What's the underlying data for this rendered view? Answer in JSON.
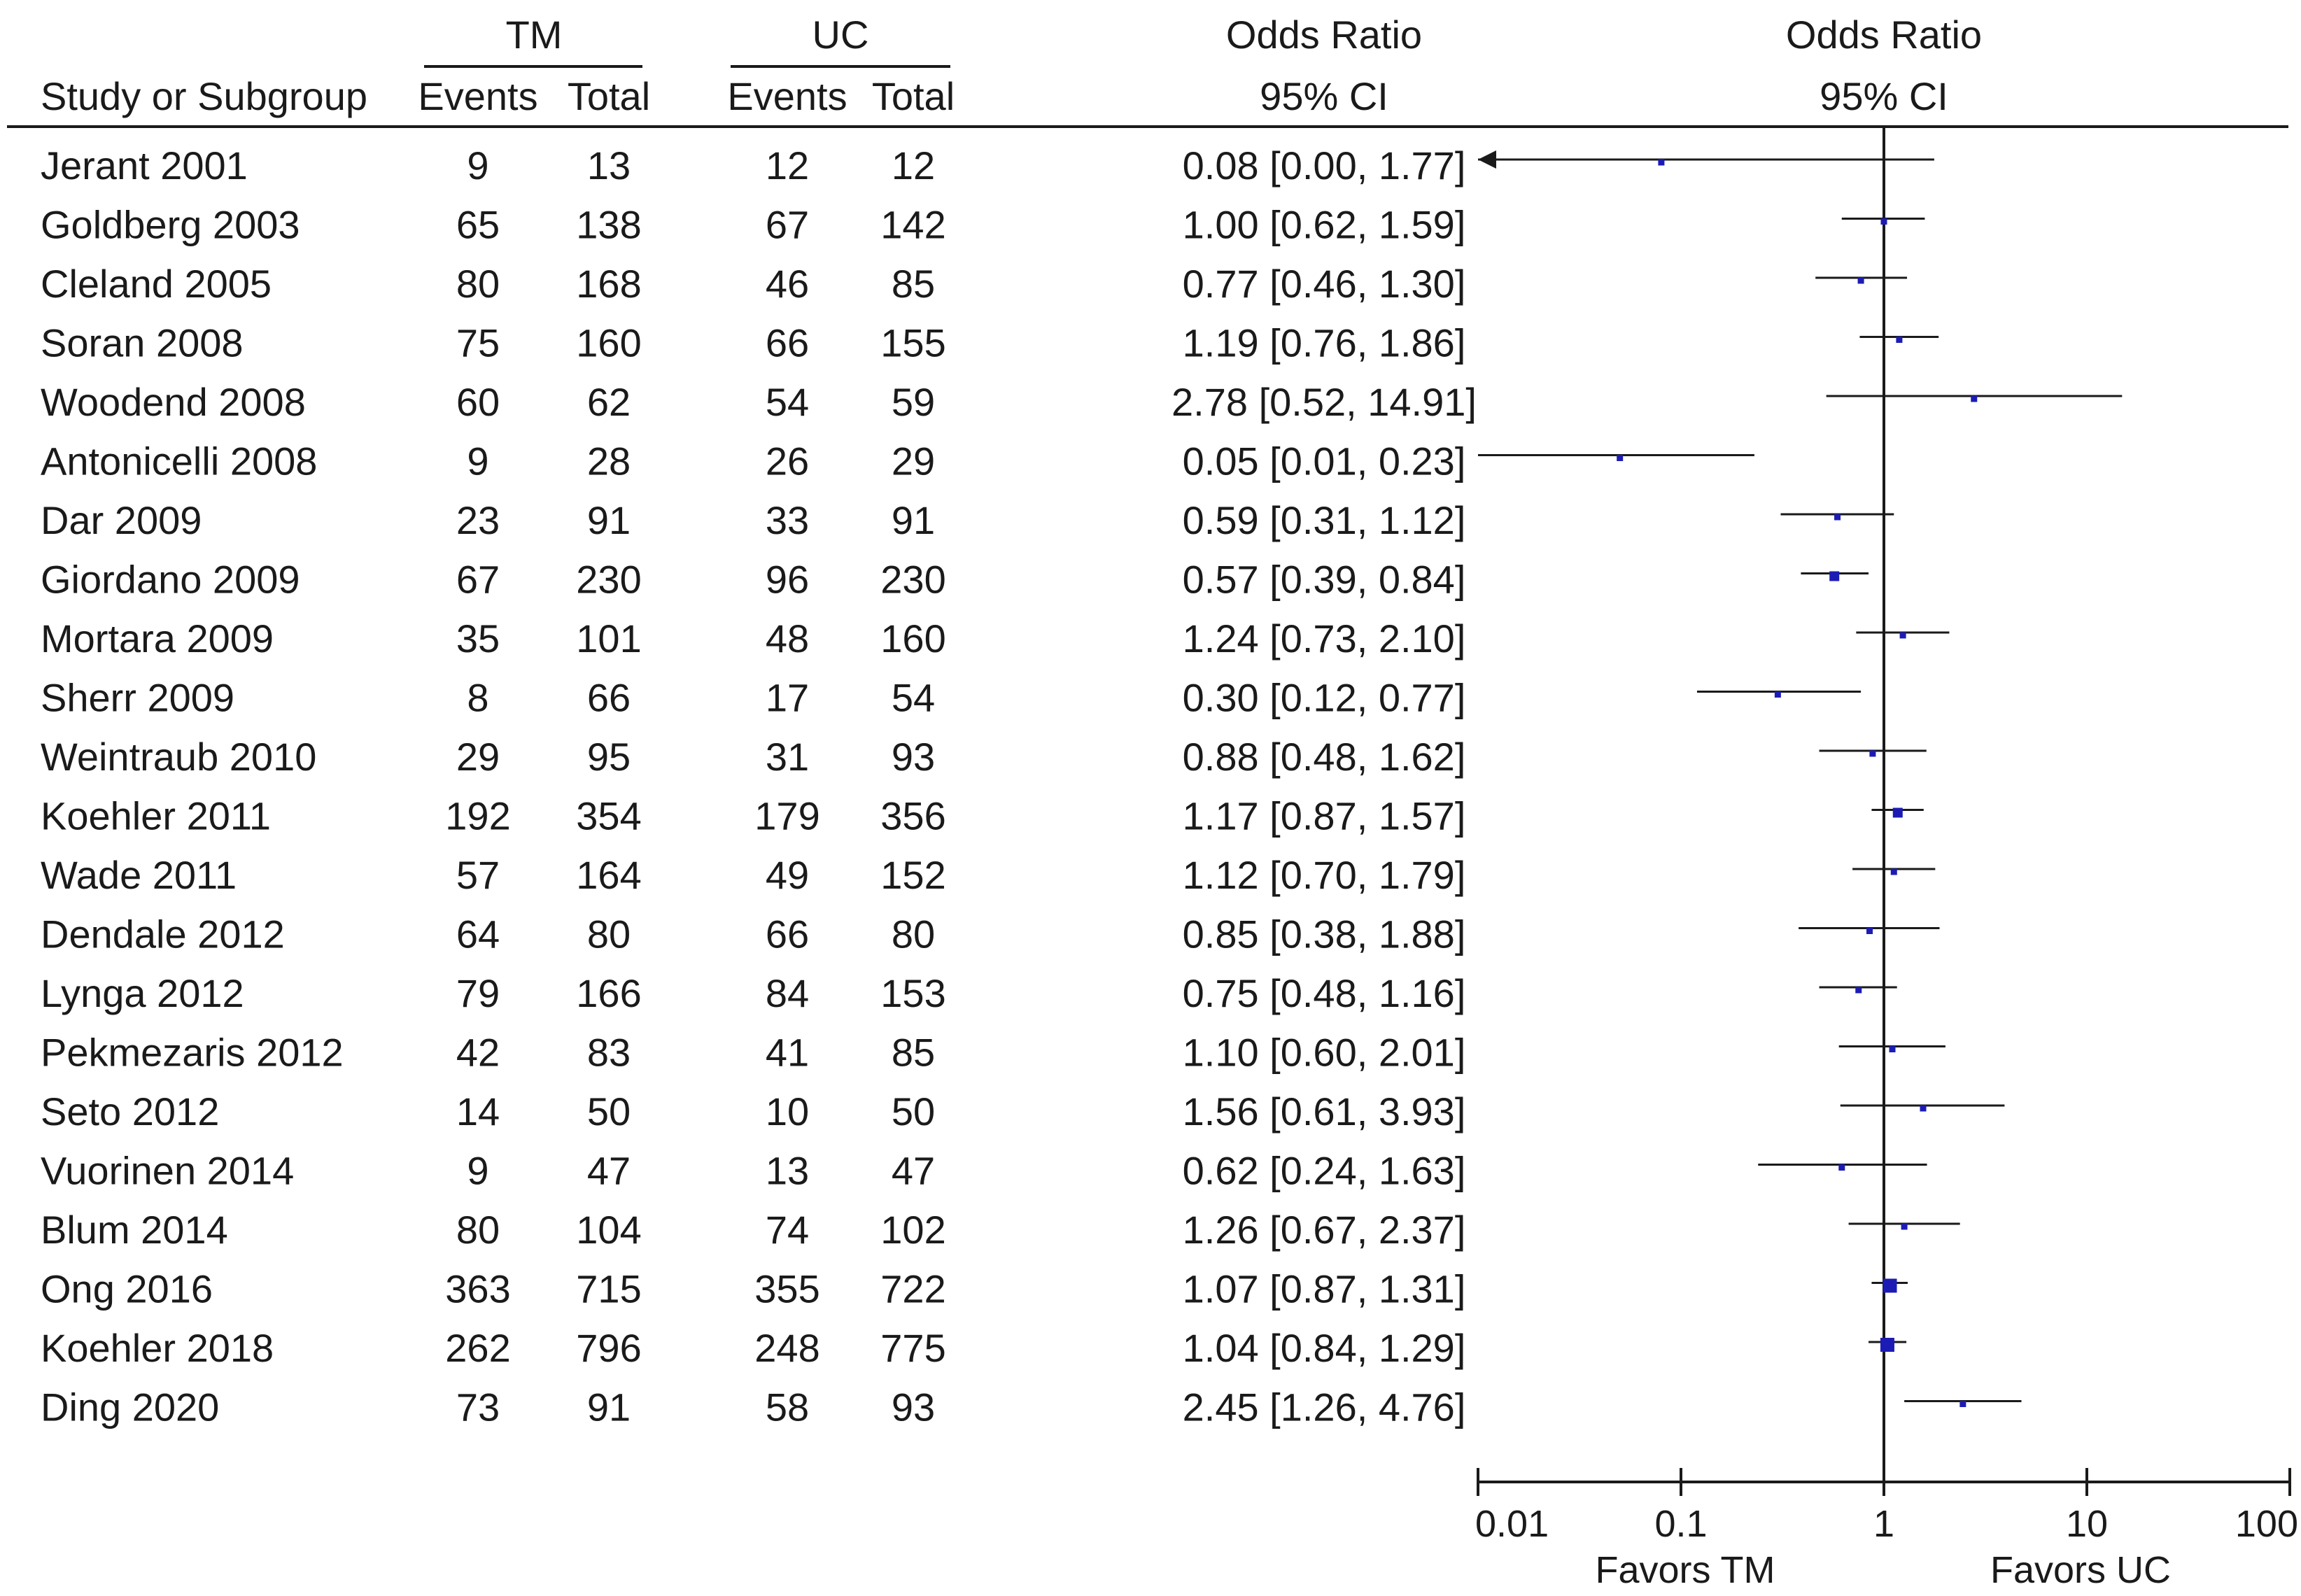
{
  "chart_data": {
    "type": "forest",
    "headers": {
      "study": "Study or Subgroup",
      "group1": "TM",
      "group2": "UC",
      "events": "Events",
      "total": "Total",
      "or_col_line1": "Odds Ratio",
      "or_col_line2": "95% CI",
      "plot_line1": "Odds Ratio",
      "plot_line2": "95% CI"
    },
    "studies": [
      {
        "name": "Jerant 2001",
        "tm_events": 9,
        "tm_total": 13,
        "uc_events": 12,
        "uc_total": 12,
        "or": 0.08,
        "lower": 0.0,
        "upper": 1.77,
        "or_text": "0.08 [0.00, 1.77]",
        "weight_rank": 1
      },
      {
        "name": "Goldberg 2003",
        "tm_events": 65,
        "tm_total": 138,
        "uc_events": 67,
        "uc_total": 142,
        "or": 1.0,
        "lower": 0.62,
        "upper": 1.59,
        "or_text": "1.00 [0.62, 1.59]",
        "weight_rank": 1
      },
      {
        "name": "Cleland 2005",
        "tm_events": 80,
        "tm_total": 168,
        "uc_events": 46,
        "uc_total": 85,
        "or": 0.77,
        "lower": 0.46,
        "upper": 1.3,
        "or_text": "0.77 [0.46, 1.30]",
        "weight_rank": 1
      },
      {
        "name": "Soran 2008",
        "tm_events": 75,
        "tm_total": 160,
        "uc_events": 66,
        "uc_total": 155,
        "or": 1.19,
        "lower": 0.76,
        "upper": 1.86,
        "or_text": "1.19 [0.76, 1.86]",
        "weight_rank": 1
      },
      {
        "name": "Woodend 2008",
        "tm_events": 60,
        "tm_total": 62,
        "uc_events": 54,
        "uc_total": 59,
        "or": 2.78,
        "lower": 0.52,
        "upper": 14.91,
        "or_text": "2.78 [0.52, 14.91]",
        "weight_rank": 1
      },
      {
        "name": "Antonicelli 2008",
        "tm_events": 9,
        "tm_total": 28,
        "uc_events": 26,
        "uc_total": 29,
        "or": 0.05,
        "lower": 0.01,
        "upper": 0.23,
        "or_text": "0.05 [0.01, 0.23]",
        "weight_rank": 1
      },
      {
        "name": "Dar 2009",
        "tm_events": 23,
        "tm_total": 91,
        "uc_events": 33,
        "uc_total": 91,
        "or": 0.59,
        "lower": 0.31,
        "upper": 1.12,
        "or_text": "0.59 [0.31, 1.12]",
        "weight_rank": 1
      },
      {
        "name": "Giordano 2009",
        "tm_events": 67,
        "tm_total": 230,
        "uc_events": 96,
        "uc_total": 230,
        "or": 0.57,
        "lower": 0.39,
        "upper": 0.84,
        "or_text": "0.57 [0.39, 0.84]",
        "weight_rank": 2
      },
      {
        "name": "Mortara 2009",
        "tm_events": 35,
        "tm_total": 101,
        "uc_events": 48,
        "uc_total": 160,
        "or": 1.24,
        "lower": 0.73,
        "upper": 2.1,
        "or_text": "1.24 [0.73, 2.10]",
        "weight_rank": 1
      },
      {
        "name": "Sherr 2009",
        "tm_events": 8,
        "tm_total": 66,
        "uc_events": 17,
        "uc_total": 54,
        "or": 0.3,
        "lower": 0.12,
        "upper": 0.77,
        "or_text": "0.30 [0.12, 0.77]",
        "weight_rank": 1
      },
      {
        "name": "Weintraub 2010",
        "tm_events": 29,
        "tm_total": 95,
        "uc_events": 31,
        "uc_total": 93,
        "or": 0.88,
        "lower": 0.48,
        "upper": 1.62,
        "or_text": "0.88 [0.48, 1.62]",
        "weight_rank": 1
      },
      {
        "name": "Koehler 2011",
        "tm_events": 192,
        "tm_total": 354,
        "uc_events": 179,
        "uc_total": 356,
        "or": 1.17,
        "lower": 0.87,
        "upper": 1.57,
        "or_text": "1.17 [0.87, 1.57]",
        "weight_rank": 2
      },
      {
        "name": "Wade 2011",
        "tm_events": 57,
        "tm_total": 164,
        "uc_events": 49,
        "uc_total": 152,
        "or": 1.12,
        "lower": 0.7,
        "upper": 1.79,
        "or_text": "1.12 [0.70, 1.79]",
        "weight_rank": 1
      },
      {
        "name": "Dendale 2012",
        "tm_events": 64,
        "tm_total": 80,
        "uc_events": 66,
        "uc_total": 80,
        "or": 0.85,
        "lower": 0.38,
        "upper": 1.88,
        "or_text": "0.85 [0.38, 1.88]",
        "weight_rank": 1
      },
      {
        "name": "Lynga 2012",
        "tm_events": 79,
        "tm_total": 166,
        "uc_events": 84,
        "uc_total": 153,
        "or": 0.75,
        "lower": 0.48,
        "upper": 1.16,
        "or_text": "0.75 [0.48, 1.16]",
        "weight_rank": 1
      },
      {
        "name": "Pekmezaris 2012",
        "tm_events": 42,
        "tm_total": 83,
        "uc_events": 41,
        "uc_total": 85,
        "or": 1.1,
        "lower": 0.6,
        "upper": 2.01,
        "or_text": "1.10 [0.60, 2.01]",
        "weight_rank": 1
      },
      {
        "name": "Seto 2012",
        "tm_events": 14,
        "tm_total": 50,
        "uc_events": 10,
        "uc_total": 50,
        "or": 1.56,
        "lower": 0.61,
        "upper": 3.93,
        "or_text": "1.56 [0.61, 3.93]",
        "weight_rank": 1
      },
      {
        "name": "Vuorinen 2014",
        "tm_events": 9,
        "tm_total": 47,
        "uc_events": 13,
        "uc_total": 47,
        "or": 0.62,
        "lower": 0.24,
        "upper": 1.63,
        "or_text": "0.62 [0.24, 1.63]",
        "weight_rank": 1
      },
      {
        "name": "Blum 2014",
        "tm_events": 80,
        "tm_total": 104,
        "uc_events": 74,
        "uc_total": 102,
        "or": 1.26,
        "lower": 0.67,
        "upper": 2.37,
        "or_text": "1.26 [0.67, 2.37]",
        "weight_rank": 1
      },
      {
        "name": "Ong 2016",
        "tm_events": 363,
        "tm_total": 715,
        "uc_events": 355,
        "uc_total": 722,
        "or": 1.07,
        "lower": 0.87,
        "upper": 1.31,
        "or_text": "1.07 [0.87, 1.31]",
        "weight_rank": 3
      },
      {
        "name": "Koehler 2018",
        "tm_events": 262,
        "tm_total": 796,
        "uc_events": 248,
        "uc_total": 775,
        "or": 1.04,
        "lower": 0.84,
        "upper": 1.29,
        "or_text": "1.04 [0.84, 1.29]",
        "weight_rank": 3
      },
      {
        "name": "Ding 2020",
        "tm_events": 73,
        "tm_total": 91,
        "uc_events": 58,
        "uc_total": 93,
        "or": 2.45,
        "lower": 1.26,
        "upper": 4.76,
        "or_text": "2.45 [1.26, 4.76]",
        "weight_rank": 1
      }
    ],
    "x_axis": {
      "scale": "log",
      "range": [
        0.01,
        100
      ],
      "ticks": [
        0.01,
        0.1,
        1,
        10,
        100
      ],
      "tick_labels": [
        "0.01",
        "0.1",
        "1",
        "10",
        "100"
      ],
      "null_value": 1
    },
    "favors_left": "Favors  TM",
    "favors_right": "Favors  UC",
    "marker_color": "#1c1cb4",
    "line_color": "#1a1a1a"
  }
}
